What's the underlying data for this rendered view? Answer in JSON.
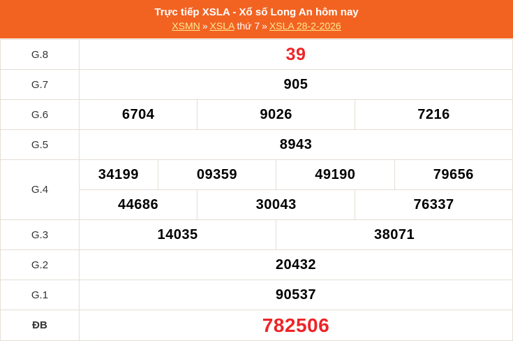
{
  "header": {
    "title": "Trực tiếp XSLA - Xổ số Long An hôm nay",
    "breadcrumb": {
      "parts": [
        {
          "text": "XSMN",
          "type": "link"
        },
        {
          "text": "»",
          "type": "separator"
        },
        {
          "text": "XSLA",
          "type": "link"
        },
        {
          "text": "thứ 7",
          "type": "text"
        },
        {
          "text": "»",
          "type": "separator"
        },
        {
          "text": "XSLA 28-2-2026",
          "type": "link"
        }
      ]
    }
  },
  "results": {
    "g8": {
      "label": "G.8",
      "values": [
        "39"
      ]
    },
    "g7": {
      "label": "G.7",
      "values": [
        "905"
      ]
    },
    "g6": {
      "label": "G.6",
      "values": [
        "6704",
        "9026",
        "7216"
      ]
    },
    "g5": {
      "label": "G.5",
      "values": [
        "8943"
      ]
    },
    "g4": {
      "label": "G.4",
      "values": [
        "34199",
        "09359",
        "49190",
        "79656",
        "44686",
        "30043",
        "76337"
      ]
    },
    "g3": {
      "label": "G.3",
      "values": [
        "14035",
        "38071"
      ]
    },
    "g2": {
      "label": "G.2",
      "values": [
        "20432"
      ]
    },
    "g1": {
      "label": "G.1",
      "values": [
        "90537"
      ]
    },
    "db": {
      "label": "ĐB",
      "values": [
        "782506"
      ]
    }
  },
  "colors": {
    "orange": "#F26322",
    "link_yellow": "#FFE98F",
    "highlight_red": "#EE2427",
    "border": "#E5DDD5",
    "label_text": "#333333",
    "number_black": "#000000"
  }
}
